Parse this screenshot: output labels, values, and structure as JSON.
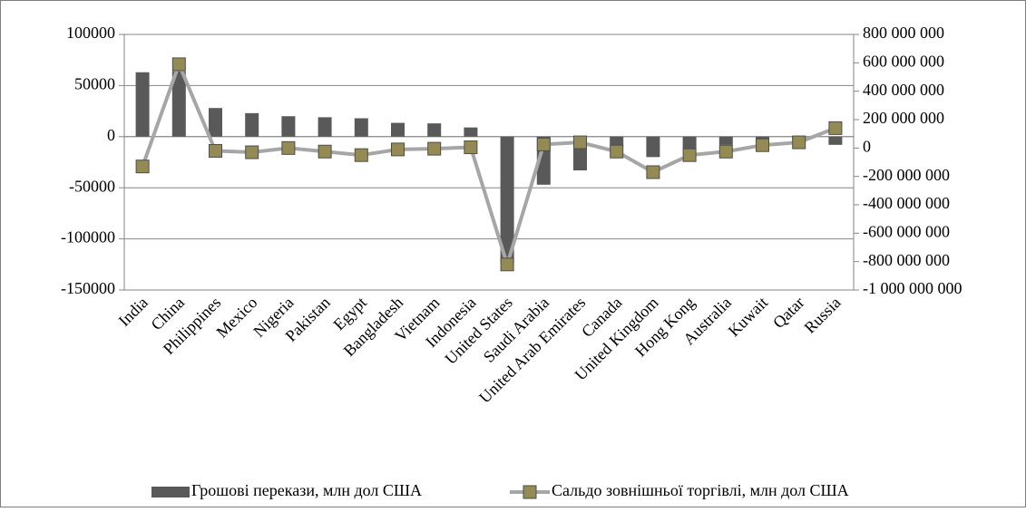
{
  "chart_data": {
    "type": "bar-line",
    "categories": [
      "India",
      "China",
      "Philippines",
      "Mexico",
      "Nigeria",
      "Pakistan",
      "Egypt",
      "Bangladesh",
      "Vietnam",
      "Indonesia",
      "United States",
      "Saudi Arabia",
      "United Arab Emirates",
      "Canada",
      "United Kingdom",
      "Hong Kong",
      "Australia",
      "Kuwait",
      "Qatar",
      "Russia"
    ],
    "series": [
      {
        "name": "Грошові перекази, млн дол США",
        "type": "bar",
        "color": "#595959",
        "values": [
          63000,
          64000,
          28000,
          23000,
          20000,
          19000,
          18000,
          13500,
          13000,
          9000,
          -124000,
          -47000,
          -33000,
          -10000,
          -20000,
          -13000,
          -8000,
          -4000,
          -3000,
          -8000
        ]
      },
      {
        "name": "Сальдо зовнішньої торгівлі, млн дол США",
        "type": "line",
        "axis": "y2",
        "color": "#a6a6a6",
        "marker_color": "#948a54",
        "values": [
          -130000000,
          590000000,
          -20000000,
          -30000000,
          0,
          -25000000,
          -50000000,
          -10000000,
          -5000000,
          5000000,
          -820000000,
          25000000,
          40000000,
          -25000000,
          -170000000,
          -50000000,
          -25000000,
          20000000,
          40000000,
          140000000
        ]
      }
    ],
    "ylim": [
      -150000,
      100000
    ],
    "yticks": [
      -150000,
      -100000,
      -50000,
      0,
      50000,
      100000
    ],
    "y2lim": [
      -1000000000,
      800000000
    ],
    "y2ticks": [
      {
        "value": -1000000000,
        "label": "-1 000 000 000"
      },
      {
        "value": -800000000,
        "label": "-800 000 000"
      },
      {
        "value": -600000000,
        "label": "-600 000 000"
      },
      {
        "value": -400000000,
        "label": "-400 000 000"
      },
      {
        "value": -200000000,
        "label": "-200 000 000"
      },
      {
        "value": 0,
        "label": "0"
      },
      {
        "value": 200000000,
        "label": "200 000 000"
      },
      {
        "value": 400000000,
        "label": "400 000 000"
      },
      {
        "value": 600000000,
        "label": "600 000 000"
      },
      {
        "value": 800000000,
        "label": "800 000 000"
      }
    ],
    "grid": true,
    "legend": "bottom"
  }
}
